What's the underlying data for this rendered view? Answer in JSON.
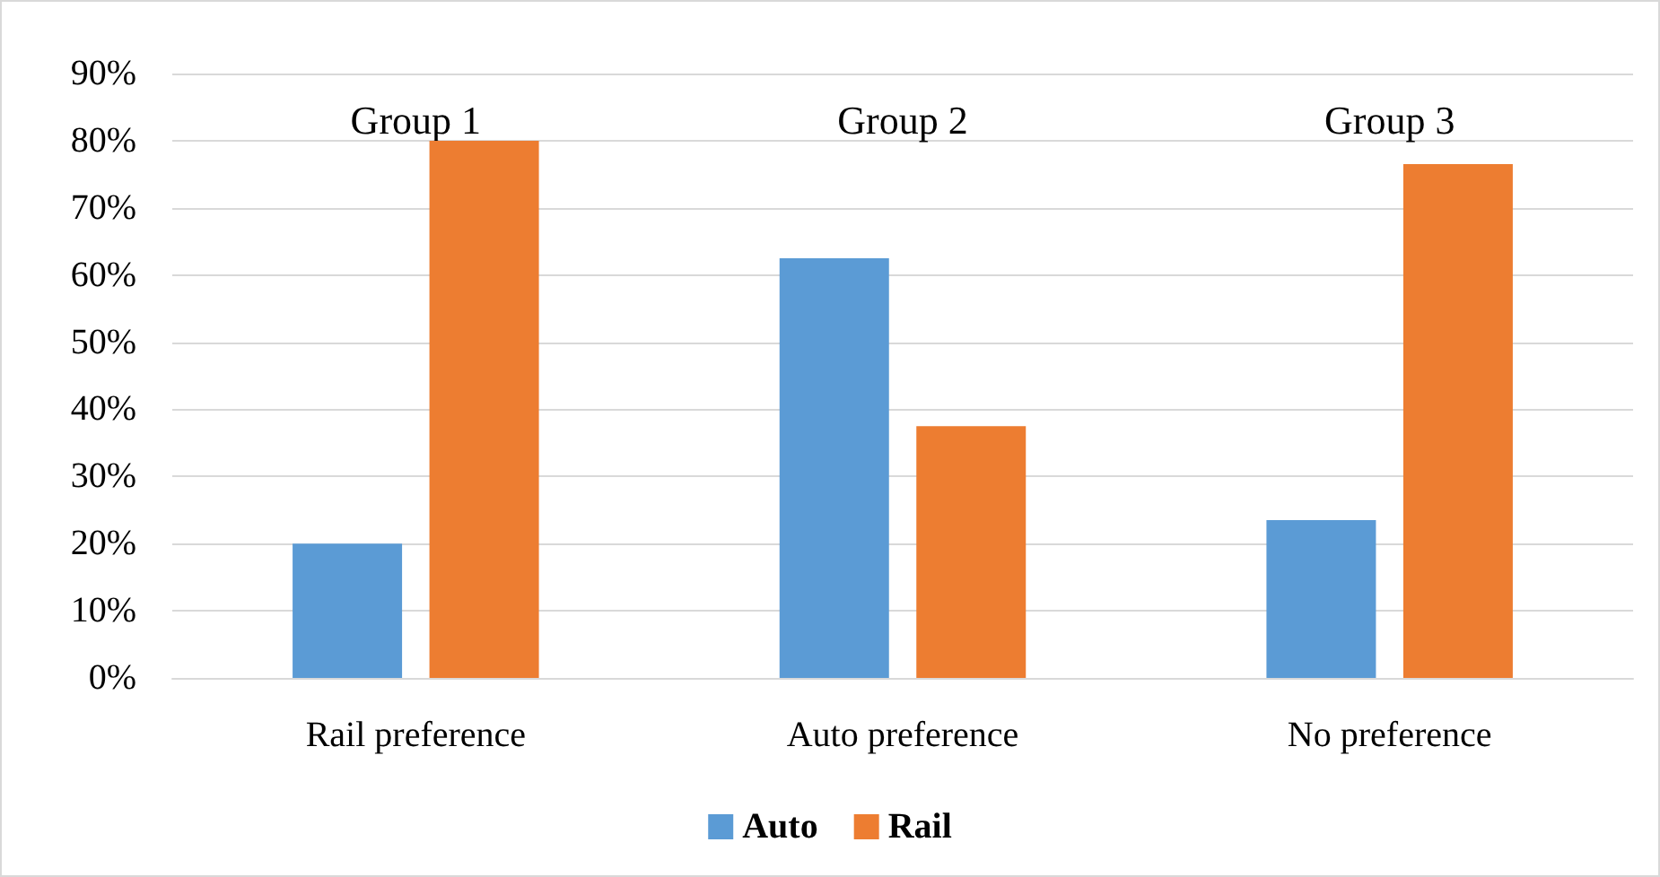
{
  "chart_data": {
    "type": "bar",
    "categories": [
      "Rail preference",
      "Auto preference",
      "No preference"
    ],
    "series": [
      {
        "name": "Auto",
        "color": "#5b9bd5",
        "values": [
          20,
          62.5,
          23.5
        ]
      },
      {
        "name": "Rail",
        "color": "#ed7d31",
        "values": [
          80,
          37.5,
          76.5
        ]
      }
    ],
    "ylim": [
      0,
      90
    ],
    "yticks": [
      {
        "value": 0,
        "label": "0%"
      },
      {
        "value": 10,
        "label": "10%"
      },
      {
        "value": 20,
        "label": "20%"
      },
      {
        "value": 30,
        "label": "30%"
      },
      {
        "value": 40,
        "label": "40%"
      },
      {
        "value": 50,
        "label": "50%"
      },
      {
        "value": 60,
        "label": "60%"
      },
      {
        "value": 70,
        "label": "70%"
      },
      {
        "value": 80,
        "label": "80%"
      },
      {
        "value": 90,
        "label": "90%"
      }
    ],
    "annotations": [
      "Group 1",
      "Group 2",
      "Group 3"
    ],
    "grid": "y",
    "legend": "bottom"
  }
}
